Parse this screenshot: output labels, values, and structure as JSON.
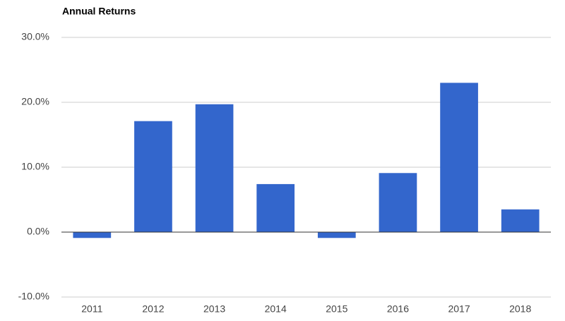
{
  "chart_data": {
    "type": "bar",
    "title": "Annual Returns",
    "categories": [
      "2011",
      "2012",
      "2013",
      "2014",
      "2015",
      "2016",
      "2017",
      "2018"
    ],
    "values": [
      -0.9,
      17.1,
      19.7,
      7.4,
      -0.9,
      9.1,
      23.0,
      3.5
    ],
    "color": "#3366cc",
    "ylim": [
      -10,
      30
    ],
    "yticks": [
      {
        "value": -10,
        "label": "-10.0%"
      },
      {
        "value": 0,
        "label": "0.0%"
      },
      {
        "value": 10,
        "label": "10.0%"
      },
      {
        "value": 20,
        "label": "20.0%"
      },
      {
        "value": 30,
        "label": "30.0%"
      }
    ],
    "grid": true
  }
}
